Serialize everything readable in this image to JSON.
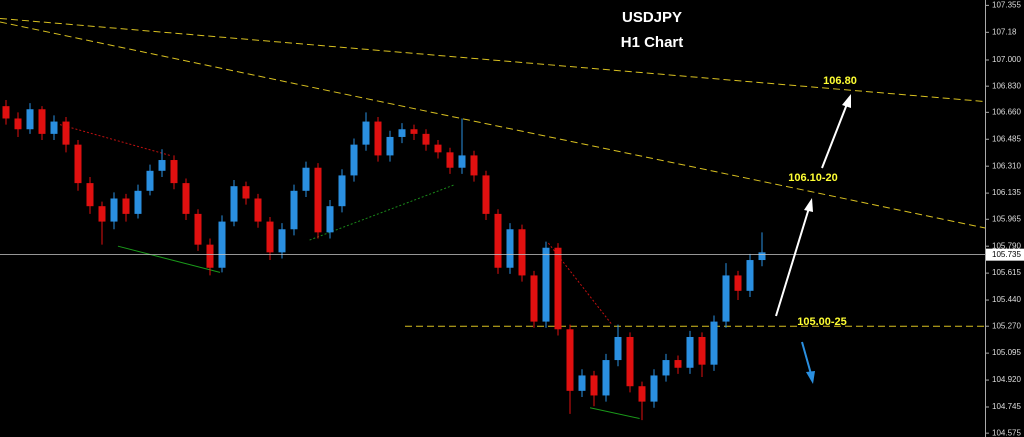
{
  "chart_data": {
    "type": "candlestick",
    "title": "USDJPY",
    "subtitle": "H1 Chart",
    "ylim": [
      104.55,
      107.39
    ],
    "yticks": [
      107.355,
      107.18,
      {
        "value": 107,
        "label": "107.000"
      },
      {
        "value": 106.83,
        "label": "106.830"
      },
      {
        "value": 106.66,
        "label": "106.660"
      },
      106.485,
      {
        "value": 106.31,
        "label": "106.310"
      },
      106.135,
      105.965,
      {
        "value": 105.79,
        "label": "105.790"
      },
      105.615,
      {
        "value": 105.44,
        "label": "105.440"
      },
      {
        "value": 105.27,
        "label": "105.270"
      },
      105.095,
      {
        "value": 104.92,
        "label": "104.920"
      },
      104.745,
      104.575
    ],
    "last_price": 105.735,
    "up_color": "#2a8fe0",
    "down_color": "#e01010",
    "candles": [
      [
        106.7,
        106.74,
        106.58,
        106.62
      ],
      [
        106.62,
        106.66,
        106.5,
        106.55
      ],
      [
        106.55,
        106.72,
        106.52,
        106.68
      ],
      [
        106.68,
        106.7,
        106.48,
        106.52
      ],
      [
        106.52,
        106.64,
        106.48,
        106.6
      ],
      [
        106.6,
        106.63,
        106.4,
        106.45
      ],
      [
        106.45,
        106.48,
        106.15,
        106.2
      ],
      [
        106.2,
        106.24,
        106.0,
        106.05
      ],
      [
        106.05,
        106.08,
        105.8,
        105.95
      ],
      [
        105.95,
        106.14,
        105.9,
        106.1
      ],
      [
        106.1,
        106.13,
        105.95,
        106.0
      ],
      [
        106.0,
        106.19,
        105.97,
        106.15
      ],
      [
        106.15,
        106.32,
        106.12,
        106.28
      ],
      [
        106.28,
        106.42,
        106.24,
        106.35
      ],
      [
        106.35,
        106.38,
        106.16,
        106.2
      ],
      [
        106.2,
        106.23,
        105.96,
        106.0
      ],
      [
        106.0,
        106.03,
        105.76,
        105.8
      ],
      [
        105.8,
        105.84,
        105.6,
        105.65
      ],
      [
        105.65,
        105.99,
        105.62,
        105.95
      ],
      [
        105.95,
        106.22,
        105.92,
        106.18
      ],
      [
        106.18,
        106.21,
        106.06,
        106.1
      ],
      [
        106.1,
        106.13,
        105.91,
        105.95
      ],
      [
        105.95,
        105.98,
        105.7,
        105.75
      ],
      [
        105.75,
        105.94,
        105.71,
        105.9
      ],
      [
        105.9,
        106.19,
        105.86,
        106.15
      ],
      [
        106.15,
        106.34,
        106.11,
        106.3
      ],
      [
        106.3,
        106.33,
        105.84,
        105.88
      ],
      [
        105.88,
        106.09,
        105.84,
        106.05
      ],
      [
        106.05,
        106.29,
        106.01,
        106.25
      ],
      [
        106.25,
        106.49,
        106.21,
        106.45
      ],
      [
        106.45,
        106.66,
        106.41,
        106.6
      ],
      [
        106.6,
        106.63,
        106.34,
        106.38
      ],
      [
        106.38,
        106.54,
        106.34,
        106.5
      ],
      [
        106.5,
        106.59,
        106.46,
        106.55
      ],
      [
        106.55,
        106.58,
        106.48,
        106.52
      ],
      [
        106.52,
        106.55,
        106.41,
        106.45
      ],
      [
        106.45,
        106.48,
        106.36,
        106.4
      ],
      [
        106.4,
        106.43,
        106.26,
        106.3
      ],
      [
        106.3,
        106.62,
        106.26,
        106.38
      ],
      [
        106.38,
        106.41,
        106.21,
        106.25
      ],
      [
        106.25,
        106.28,
        105.96,
        106.0
      ],
      [
        106.0,
        106.03,
        105.61,
        105.65
      ],
      [
        105.65,
        105.94,
        105.61,
        105.9
      ],
      [
        105.9,
        105.93,
        105.56,
        105.6
      ],
      [
        105.6,
        105.63,
        105.26,
        105.3
      ],
      [
        105.3,
        105.82,
        105.26,
        105.78
      ],
      [
        105.78,
        105.81,
        105.21,
        105.25
      ],
      [
        105.25,
        105.28,
        104.7,
        104.85
      ],
      [
        104.85,
        104.99,
        104.81,
        104.95
      ],
      [
        104.95,
        104.98,
        104.75,
        104.82
      ],
      [
        104.82,
        105.09,
        104.78,
        105.05
      ],
      [
        105.05,
        105.28,
        105.01,
        105.2
      ],
      [
        105.2,
        105.23,
        104.84,
        104.88
      ],
      [
        104.88,
        104.91,
        104.66,
        104.78
      ],
      [
        104.78,
        104.99,
        104.74,
        104.95
      ],
      [
        104.95,
        105.09,
        104.91,
        105.05
      ],
      [
        105.05,
        105.08,
        104.96,
        105.0
      ],
      [
        105.0,
        105.24,
        104.96,
        105.2
      ],
      [
        105.2,
        105.23,
        104.94,
        105.02
      ],
      [
        105.02,
        105.34,
        104.98,
        105.3
      ],
      [
        105.3,
        105.68,
        105.26,
        105.6
      ],
      [
        105.6,
        105.63,
        105.44,
        105.5
      ],
      [
        105.5,
        105.74,
        105.46,
        105.7
      ],
      [
        105.7,
        105.88,
        105.66,
        105.75
      ]
    ],
    "lines": [
      {
        "x": [
          -0.5,
          81.6
        ],
        "y": [
          107.27,
          106.73
        ],
        "color": "#d8c020",
        "style": "dashed"
      },
      {
        "x": [
          -0.5,
          81.6
        ],
        "y": [
          107.247,
          105.908
        ],
        "color": "#d8c020",
        "style": "dashed"
      },
      {
        "x": [
          33.25,
          81.6
        ],
        "y": [
          105.27,
          105.27
        ],
        "color": "#d8c020",
        "style": "dashed"
      },
      {
        "x": [
          4.5,
          13.67
        ],
        "y": [
          106.58,
          106.38
        ],
        "color": "#c01010",
        "style": "dotted"
      },
      {
        "x": [
          45.2,
          50.5
        ],
        "y": [
          105.81,
          105.28
        ],
        "color": "#c01010",
        "style": "dotted"
      },
      {
        "x": [
          25.3,
          37.4
        ],
        "y": [
          105.83,
          106.19
        ],
        "color": "#1a8a1a",
        "style": "dotted"
      },
      {
        "x": [
          9.33,
          17.83
        ],
        "y": [
          105.79,
          105.62
        ],
        "color": "#1a9a1a",
        "style": "solid"
      },
      {
        "x": [
          48.67,
          52.8
        ],
        "y": [
          104.74,
          104.67
        ],
        "color": "#1a9a1a",
        "style": "solid"
      }
    ],
    "annotations": [
      "106.80",
      "106.10-20",
      "105.00-25"
    ]
  }
}
